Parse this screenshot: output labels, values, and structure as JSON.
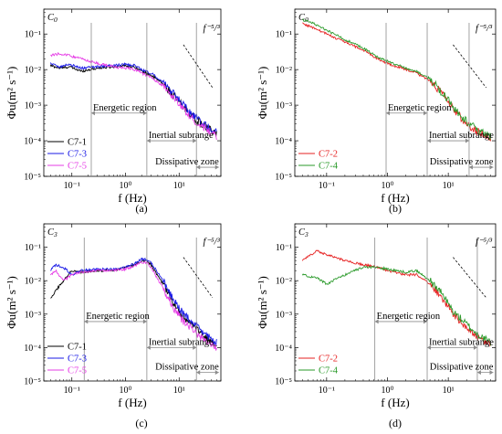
{
  "colors": {
    "C7-1": "#000000",
    "C7-3": "#1a1ae6",
    "C7-5": "#e63ee6",
    "C7-2": "#e62020",
    "C7-4": "#2a9a2a",
    "region_line": "#8c8c8c",
    "reference_line": "#000000"
  },
  "chart_data": [
    {
      "type": "line",
      "panel_label": "(a)",
      "condition": "C0",
      "xlabel": "f (Hz)",
      "ylabel": "Φu(m² s⁻¹)",
      "x_scale": "log",
      "y_scale": "log",
      "xlim": [
        0.03,
        60
      ],
      "ylim": [
        1e-05,
        0.5
      ],
      "x_ticks": [
        "10⁻¹",
        "10⁰",
        "10¹"
      ],
      "y_ticks": [
        "10⁻⁵",
        "10⁻⁴",
        "10⁻³",
        "10⁻²",
        "10⁻¹"
      ],
      "slope_label": "f⁻⁵/³",
      "legend": {
        "placement": "bottom-left",
        "entries": [
          "C7-1",
          "C7-3",
          "C7-5"
        ]
      },
      "boundaries": [
        0.23,
        2.5,
        21
      ],
      "regions": [
        {
          "label": "Energetic region",
          "from": 0.23,
          "to": 2.5,
          "y": 0.0006
        },
        {
          "label": "Inertial subrange",
          "from": 2.5,
          "to": 21,
          "y": 0.0001
        },
        {
          "label": "Dissipative zone",
          "from": 21,
          "to": 55,
          "y": 1.8e-05
        }
      ],
      "series": [
        {
          "name": "C7-1",
          "x": [
            0.04,
            0.06,
            0.09,
            0.15,
            0.3,
            0.6,
            1,
            1.5,
            2,
            3,
            5,
            8,
            12,
            20,
            30,
            50
          ],
          "y": [
            0.013,
            0.011,
            0.012,
            0.009,
            0.011,
            0.012,
            0.013,
            0.012,
            0.009,
            0.007,
            0.004,
            0.0018,
            0.0009,
            0.0004,
            0.00025,
            0.00015
          ]
        },
        {
          "name": "C7-3",
          "x": [
            0.04,
            0.06,
            0.09,
            0.15,
            0.3,
            0.6,
            1,
            1.5,
            2,
            3,
            5,
            8,
            12,
            20,
            30,
            50
          ],
          "y": [
            0.015,
            0.012,
            0.014,
            0.011,
            0.012,
            0.013,
            0.014,
            0.013,
            0.01,
            0.008,
            0.0045,
            0.002,
            0.001,
            0.00045,
            0.00028,
            0.00017
          ]
        },
        {
          "name": "C7-5",
          "x": [
            0.04,
            0.06,
            0.09,
            0.15,
            0.3,
            0.6,
            1,
            1.5,
            2,
            3,
            5,
            8,
            12,
            20,
            30,
            50
          ],
          "y": [
            0.025,
            0.028,
            0.025,
            0.02,
            0.015,
            0.012,
            0.011,
            0.01,
            0.008,
            0.006,
            0.0035,
            0.0016,
            0.0008,
            0.00035,
            0.00022,
            0.00013
          ]
        }
      ]
    },
    {
      "type": "line",
      "panel_label": "(b)",
      "condition": "C0",
      "xlabel": "f (Hz)",
      "ylabel": "Φu(m² s⁻¹)",
      "x_scale": "log",
      "y_scale": "log",
      "xlim": [
        0.03,
        60
      ],
      "ylim": [
        1e-05,
        0.5
      ],
      "x_ticks": [
        "10⁻¹",
        "10⁰",
        "10¹"
      ],
      "y_ticks": [
        "10⁻⁵",
        "10⁻⁴",
        "10⁻³",
        "10⁻²",
        "10⁻¹"
      ],
      "slope_label": "f⁻⁵/³",
      "legend": {
        "placement": "bottom-left",
        "entries": [
          "C7-2",
          "C7-4"
        ]
      },
      "boundaries": [
        0.95,
        4.5,
        22
      ],
      "regions": [
        {
          "label": "Energetic region",
          "from": 0.95,
          "to": 4.5,
          "y": 0.0006
        },
        {
          "label": "Inertial subrange",
          "from": 4.5,
          "to": 22,
          "y": 0.0001
        },
        {
          "label": "Dissipative zone",
          "from": 22,
          "to": 55,
          "y": 1.8e-05
        }
      ],
      "series": [
        {
          "name": "C7-2",
          "x": [
            0.04,
            0.06,
            0.1,
            0.2,
            0.4,
            0.7,
            1,
            2,
            3,
            5,
            8,
            12,
            20,
            30,
            50
          ],
          "y": [
            0.2,
            0.15,
            0.1,
            0.06,
            0.035,
            0.02,
            0.015,
            0.01,
            0.008,
            0.005,
            0.002,
            0.0008,
            0.0003,
            0.00018,
            0.00012
          ]
        },
        {
          "name": "C7-4",
          "x": [
            0.04,
            0.06,
            0.1,
            0.2,
            0.4,
            0.7,
            1,
            2,
            3,
            5,
            8,
            12,
            20,
            30,
            50
          ],
          "y": [
            0.25,
            0.2,
            0.13,
            0.07,
            0.04,
            0.022,
            0.017,
            0.011,
            0.009,
            0.0055,
            0.0022,
            0.0009,
            0.00035,
            0.0002,
            0.00013
          ]
        }
      ]
    },
    {
      "type": "line",
      "panel_label": "(c)",
      "condition": "C3",
      "xlabel": "f (Hz)",
      "ylabel": "Φu(m² s⁻¹)",
      "x_scale": "log",
      "y_scale": "log",
      "xlim": [
        0.03,
        60
      ],
      "ylim": [
        1e-05,
        0.5
      ],
      "x_ticks": [
        "10⁻¹",
        "10⁰",
        "10¹"
      ],
      "y_ticks": [
        "10⁻⁵",
        "10⁻⁴",
        "10⁻³",
        "10⁻²",
        "10⁻¹"
      ],
      "slope_label": "f⁻⁵/³",
      "legend": {
        "placement": "bottom-left",
        "entries": [
          "C7-1",
          "C7-3",
          "C7-5"
        ]
      },
      "boundaries": [
        0.17,
        2.5,
        21
      ],
      "regions": [
        {
          "label": "Energetic region",
          "from": 0.17,
          "to": 2.5,
          "y": 0.0006
        },
        {
          "label": "Inertial subrange",
          "from": 2.5,
          "to": 21,
          "y": 0.0001
        },
        {
          "label": "Dissipative zone",
          "from": 21,
          "to": 55,
          "y": 1.8e-05
        }
      ],
      "series": [
        {
          "name": "C7-1",
          "x": [
            0.04,
            0.05,
            0.07,
            0.1,
            0.15,
            0.3,
            0.6,
            1,
            1.5,
            2,
            2.5,
            3,
            5,
            8,
            12,
            20,
            30,
            50
          ],
          "y": [
            0.003,
            0.005,
            0.01,
            0.02,
            0.018,
            0.02,
            0.02,
            0.025,
            0.03,
            0.04,
            0.04,
            0.03,
            0.008,
            0.002,
            0.0008,
            0.0004,
            0.0002,
            0.00012
          ]
        },
        {
          "name": "C7-3",
          "x": [
            0.04,
            0.05,
            0.07,
            0.1,
            0.15,
            0.3,
            0.6,
            1,
            1.5,
            2,
            2.5,
            3,
            5,
            8,
            12,
            20,
            30,
            50
          ],
          "y": [
            0.02,
            0.03,
            0.025,
            0.015,
            0.02,
            0.022,
            0.022,
            0.025,
            0.033,
            0.045,
            0.042,
            0.035,
            0.01,
            0.0025,
            0.001,
            0.0005,
            0.00025,
            0.00014
          ]
        },
        {
          "name": "C7-5",
          "x": [
            0.04,
            0.05,
            0.07,
            0.1,
            0.15,
            0.3,
            0.6,
            1,
            1.5,
            2,
            2.5,
            3,
            5,
            8,
            12,
            20,
            30,
            50
          ],
          "y": [
            0.015,
            0.02,
            0.01,
            0.015,
            0.018,
            0.02,
            0.02,
            0.022,
            0.028,
            0.035,
            0.035,
            0.025,
            0.006,
            0.0015,
            0.0006,
            0.0003,
            0.00015,
            0.0001
          ]
        }
      ]
    },
    {
      "type": "line",
      "panel_label": "(d)",
      "condition": "C3",
      "xlabel": "f (Hz)",
      "ylabel": "Φu(m² s⁻¹)",
      "x_scale": "log",
      "y_scale": "log",
      "xlim": [
        0.03,
        60
      ],
      "ylim": [
        1e-05,
        0.5
      ],
      "x_ticks": [
        "10⁻¹",
        "10⁰",
        "10¹"
      ],
      "y_ticks": [
        "10⁻⁵",
        "10⁻⁴",
        "10⁻³",
        "10⁻²",
        "10⁻¹"
      ],
      "slope_label": "f⁻⁵/³",
      "legend": {
        "placement": "bottom-left",
        "entries": [
          "C7-2",
          "C7-4"
        ]
      },
      "boundaries": [
        0.62,
        4.5,
        30
      ],
      "regions": [
        {
          "label": "Energetic region",
          "from": 0.62,
          "to": 4.5,
          "y": 0.0006
        },
        {
          "label": "Inertial subrange",
          "from": 4.5,
          "to": 30,
          "y": 0.0001
        },
        {
          "label": "Dissipative zone",
          "from": 30,
          "to": 55,
          "y": 1.8e-05
        }
      ],
      "series": [
        {
          "name": "C7-2",
          "x": [
            0.04,
            0.07,
            0.1,
            0.2,
            0.4,
            0.7,
            1,
            2,
            3,
            5,
            8,
            12,
            20,
            30,
            50
          ],
          "y": [
            0.04,
            0.08,
            0.06,
            0.04,
            0.03,
            0.025,
            0.02,
            0.015,
            0.015,
            0.008,
            0.003,
            0.001,
            0.0004,
            0.0002,
            0.00012
          ]
        },
        {
          "name": "C7-4",
          "x": [
            0.04,
            0.07,
            0.1,
            0.2,
            0.4,
            0.7,
            1,
            2,
            3,
            5,
            8,
            12,
            20,
            30,
            50
          ],
          "y": [
            0.015,
            0.012,
            0.008,
            0.015,
            0.025,
            0.025,
            0.022,
            0.018,
            0.02,
            0.01,
            0.004,
            0.0012,
            0.0005,
            0.00025,
            0.00014
          ]
        }
      ]
    }
  ]
}
